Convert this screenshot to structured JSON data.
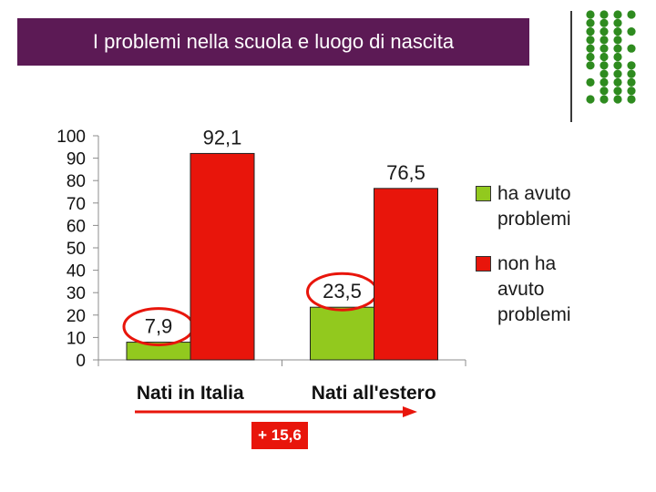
{
  "slide": {
    "title": "I problemi nella scuola e luogo di nascita",
    "difference_label": "+ 15,6"
  },
  "colors": {
    "title_background": "#5c1a55",
    "dots": "#2e8b1f",
    "series_problems": "#92c91e",
    "series_no_problems": "#e8150b",
    "highlight_ring": "#e8150b",
    "arrow": "#e8150b"
  },
  "chart_data": {
    "type": "bar",
    "title": "",
    "xlabel": "",
    "ylabel": "",
    "ylim": [
      0,
      100
    ],
    "yticks": [
      0,
      10,
      20,
      30,
      40,
      50,
      60,
      70,
      80,
      90,
      100
    ],
    "categories": [
      "Nati in Italia",
      "Nati all'estero"
    ],
    "series": [
      {
        "name": "ha avuto problemi",
        "values": [
          7.9,
          23.5
        ],
        "labels": [
          "7,9",
          "23,5"
        ],
        "color": "#92c91e"
      },
      {
        "name": "non ha avuto problemi",
        "values": [
          92.1,
          76.5
        ],
        "labels": [
          "92,1",
          "76,5"
        ],
        "color": "#e8150b"
      }
    ],
    "highlighted_values": [
      "7,9",
      "23,5"
    ],
    "legend_position": "right",
    "grid": false
  },
  "legend": [
    {
      "label": "ha avuto problemi",
      "color": "#92c91e"
    },
    {
      "label": "non ha avuto problemi",
      "color": "#e8150b"
    }
  ]
}
